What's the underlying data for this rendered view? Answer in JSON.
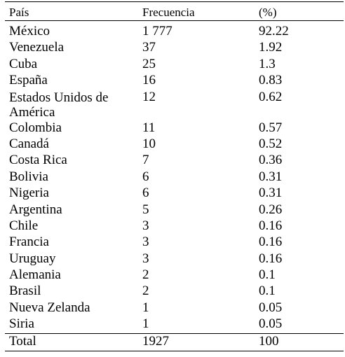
{
  "table": {
    "headers": [
      "País",
      "Frecuencia",
      "(%)"
    ],
    "rows": [
      {
        "country": "México",
        "frequency": "1 777",
        "percent": "92.22"
      },
      {
        "country": "Venezuela",
        "frequency": "37",
        "percent": "1.92"
      },
      {
        "country": "Cuba",
        "frequency": "25",
        "percent": "1.3"
      },
      {
        "country": "España",
        "frequency": "16",
        "percent": "0.83"
      },
      {
        "country": "Estados Unidos de América",
        "frequency": "12",
        "percent": "0.62"
      },
      {
        "country": "Colombia",
        "frequency": "11",
        "percent": "0.57"
      },
      {
        "country": "Canadá",
        "frequency": "10",
        "percent": "0.52"
      },
      {
        "country": "Costa Rica",
        "frequency": "7",
        "percent": "0.36"
      },
      {
        "country": "Bolivia",
        "frequency": "6",
        "percent": "0.31"
      },
      {
        "country": "Nigeria",
        "frequency": "6",
        "percent": "0.31"
      },
      {
        "country": "Argentina",
        "frequency": "5",
        "percent": "0.26"
      },
      {
        "country": "Chile",
        "frequency": "3",
        "percent": "0.16"
      },
      {
        "country": "Francia",
        "frequency": "3",
        "percent": "0.16"
      },
      {
        "country": "Uruguay",
        "frequency": "3",
        "percent": "0.16"
      },
      {
        "country": "Alemania",
        "frequency": "2",
        "percent": "0.1"
      },
      {
        "country": "Brasil",
        "frequency": "2",
        "percent": "0.1"
      },
      {
        "country": "Nueva Zelanda",
        "frequency": "1",
        "percent": "0.05"
      },
      {
        "country": "Siria",
        "frequency": "1",
        "percent": "0.05"
      }
    ],
    "total": {
      "country": "Total",
      "frequency": "1927",
      "percent": "100"
    }
  }
}
